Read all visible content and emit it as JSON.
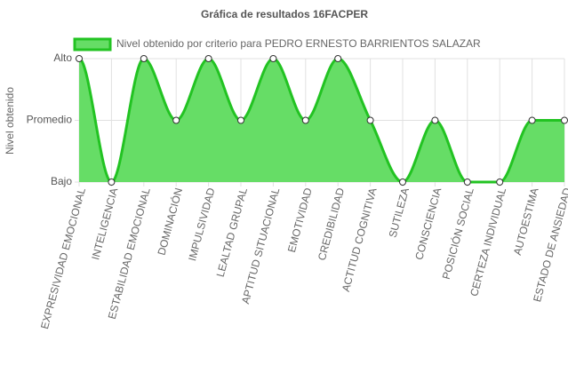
{
  "chart_data": {
    "type": "area",
    "title": "Gráfica de resultados 16FACPER",
    "y_label": "Nivel obtenido",
    "categories": [
      "EXPRESIVIDAD EMOCIONAL",
      "INTELIGENCIA",
      "ESTABILIDAD EMOCIONAL",
      "DOMINACIÓN",
      "IMPULSIVIDAD",
      "LEALTAD GRUPAL",
      "APTITUD SITUACIONAL",
      "EMOTIVIDAD",
      "CREDIBILIDAD",
      "ACTITUD COGNITIVA",
      "SUTILEZA",
      "CONSCIENCIA",
      "POSICIÓN SOCIAL",
      "CERTEZA INDIVIDUAL",
      "AUTOESTIMA",
      "ESTADO DE ANSIEDAD"
    ],
    "series": [
      {
        "name": "Nivel obtenido por criterio para PEDRO ERNESTO BARRIENTOS SALAZAR",
        "color": "#22c322",
        "fill": "#66dd66",
        "values": [
          3,
          1,
          3,
          2,
          3,
          2,
          3,
          2,
          3,
          2,
          1,
          2,
          1,
          1,
          2,
          2
        ]
      }
    ],
    "ylim": [
      1,
      3
    ],
    "yticks": [
      {
        "value": 1,
        "label": "Bajo"
      },
      {
        "value": 2,
        "label": "Promedio"
      },
      {
        "value": 3,
        "label": "Alto"
      }
    ],
    "grid": true
  }
}
